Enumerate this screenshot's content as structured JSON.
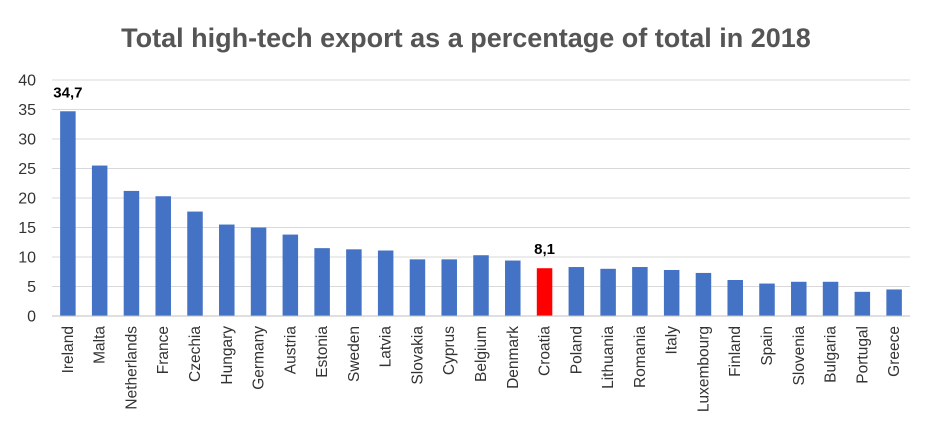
{
  "chart_data": {
    "type": "bar",
    "title": "Total high-tech export as a percentage of total in 2018",
    "xlabel": "",
    "ylabel": "",
    "ylim": [
      0,
      40
    ],
    "yticks": [
      0,
      5,
      10,
      15,
      20,
      25,
      30,
      35,
      40
    ],
    "grid": true,
    "legend": "none",
    "categories": [
      "Ireland",
      "Malta",
      "Netherlands",
      "France",
      "Czechia",
      "Hungary",
      "Germany",
      "Austria",
      "Estonia",
      "Sweden",
      "Latvia",
      "Slovakia",
      "Cyprus",
      "Belgium",
      "Denmark",
      "Croatia",
      "Poland",
      "Lithuania",
      "Romania",
      "Italy",
      "Luxembourg",
      "Finland",
      "Spain",
      "Slovenia",
      "Bulgaria",
      "Portugal",
      "Greece"
    ],
    "values": [
      34.7,
      25.5,
      21.2,
      20.3,
      17.7,
      15.5,
      15.0,
      13.8,
      11.5,
      11.3,
      11.1,
      9.6,
      9.6,
      10.3,
      9.4,
      8.1,
      8.3,
      8.0,
      8.3,
      7.8,
      7.3,
      6.1,
      5.5,
      5.8,
      5.8,
      4.1,
      4.5
    ],
    "data_labels": [
      {
        "category": "Ireland",
        "text": "34,7"
      },
      {
        "category": "Croatia",
        "text": "8,1"
      }
    ],
    "colors": {
      "default_bar": "#4472C4",
      "highlight_bar": "#FF0000",
      "highlight_category": "Croatia"
    }
  }
}
